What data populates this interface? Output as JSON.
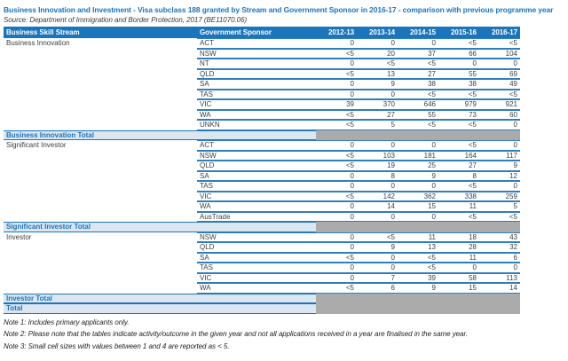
{
  "title": "Business Innovation and Investment - Visa subclass 188 granted by Stream and Government Sponsor in 2016-17 - comparison with previous programme year",
  "source": "Source: Department of Immigration and Border Protection, 2017 (BE11070.06)",
  "colors": {
    "header_blue": "#1B75BC",
    "row_border_blue": "#2E7FBE",
    "total_row_bg": "#DCE6F1",
    "total_row_text": "#1B75BC",
    "gray_block": "#ABABAB"
  },
  "table": {
    "headers": [
      "Business Skill Stream",
      "Government Sponsor",
      "2012-13",
      "2013-14",
      "2014-15",
      "2015-16",
      "2016-17"
    ],
    "groups": [
      {
        "stream": "Business Innovation",
        "rows": [
          {
            "sponsor": "ACT",
            "values": [
              "0",
              "0",
              "0",
              "<5",
              "<5"
            ]
          },
          {
            "sponsor": "NSW",
            "values": [
              "<5",
              "20",
              "37",
              "66",
              "104"
            ]
          },
          {
            "sponsor": "NT",
            "values": [
              "0",
              "<5",
              "<5",
              "0",
              "0"
            ]
          },
          {
            "sponsor": "QLD",
            "values": [
              "<5",
              "13",
              "27",
              "55",
              "69"
            ]
          },
          {
            "sponsor": "SA",
            "values": [
              "0",
              "9",
              "38",
              "38",
              "49"
            ]
          },
          {
            "sponsor": "TAS",
            "values": [
              "0",
              "0",
              "<5",
              "<5",
              "<5"
            ]
          },
          {
            "sponsor": "VIC",
            "values": [
              "39",
              "370",
              "646",
              "979",
              "921"
            ]
          },
          {
            "sponsor": "WA",
            "values": [
              "<5",
              "27",
              "55",
              "73",
              "60"
            ]
          },
          {
            "sponsor": "UNKN",
            "values": [
              "<5",
              "5",
              "<5",
              "<5",
              "0"
            ]
          }
        ],
        "total_label": "Business Innovation Total"
      },
      {
        "stream": "Significant Investor",
        "rows": [
          {
            "sponsor": "ACT",
            "values": [
              "0",
              "0",
              "0",
              "<5",
              "0"
            ]
          },
          {
            "sponsor": "NSW",
            "values": [
              "<5",
              "103",
              "181",
              "164",
              "117"
            ]
          },
          {
            "sponsor": "QLD",
            "values": [
              "<5",
              "19",
              "25",
              "27",
              "9"
            ]
          },
          {
            "sponsor": "SA",
            "values": [
              "0",
              "8",
              "9",
              "8",
              "12"
            ]
          },
          {
            "sponsor": "TAS",
            "values": [
              "0",
              "0",
              "0",
              "<5",
              "0"
            ]
          },
          {
            "sponsor": "VIC",
            "values": [
              "<5",
              "142",
              "362",
              "338",
              "259"
            ]
          },
          {
            "sponsor": "WA",
            "values": [
              "0",
              "14",
              "15",
              "11",
              "5"
            ]
          },
          {
            "sponsor": "AusTrade",
            "values": [
              "0",
              "0",
              "0",
              "<5",
              "<5"
            ]
          }
        ],
        "total_label": "Significant Investor Total"
      },
      {
        "stream": "Investor",
        "rows": [
          {
            "sponsor": "NSW",
            "values": [
              "0",
              "<5",
              "11",
              "18",
              "43"
            ]
          },
          {
            "sponsor": "QLD",
            "values": [
              "0",
              "9",
              "13",
              "28",
              "32"
            ]
          },
          {
            "sponsor": "SA",
            "values": [
              "<5",
              "0",
              "<5",
              "11",
              "6"
            ]
          },
          {
            "sponsor": "TAS",
            "values": [
              "0",
              "0",
              "<5",
              "0",
              "0"
            ]
          },
          {
            "sponsor": "VIC",
            "values": [
              "0",
              "7",
              "39",
              "58",
              "113"
            ]
          },
          {
            "sponsor": "WA",
            "values": [
              "<5",
              "6",
              "9",
              "15",
              "14"
            ]
          }
        ],
        "total_label": "Investor Total"
      }
    ],
    "grand_total_label": "Total"
  },
  "notes": [
    "Note 1: Includes primary applicants only.",
    "Note 2: Please note that the tables indicate activity/outcome in the given year and not all applications received in a year are finalised in the same year.",
    "Note 3: Small cell sizes with values between 1 and 4 are reported as < 5."
  ]
}
